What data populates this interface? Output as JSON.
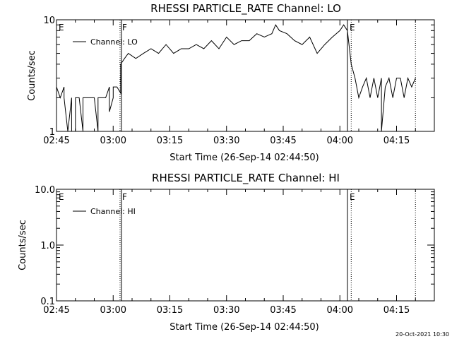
{
  "footer": {
    "timestamp": "20-Oct-2021 10:30"
  },
  "chart_data": [
    {
      "type": "line",
      "title": "RHESSI PARTICLE_RATE Channel: LO",
      "xlabel": "Start Time (26-Sep-14 02:44:50)",
      "ylabel": "Counts/sec",
      "yscale": "log",
      "ylim": [
        1,
        10
      ],
      "xlim_minutes_after_0245": [
        0,
        100
      ],
      "x_tick_labels": [
        "02:45",
        "03:00",
        "03:15",
        "03:30",
        "03:45",
        "04:00",
        "04:15"
      ],
      "y_tick_labels": [
        "1",
        "10"
      ],
      "legend": {
        "label": "Channel: LO",
        "placement": "top-left"
      },
      "markers": [
        {
          "label": "E",
          "time": "02:45",
          "style": "none"
        },
        {
          "label": "F",
          "time": "03:02",
          "style": "dotted"
        },
        {
          "label": "",
          "time": "03:02",
          "style": "solid"
        },
        {
          "label": "E",
          "time": "04:02",
          "style": "solid"
        },
        {
          "label": "",
          "time": "04:03",
          "style": "dotted"
        },
        {
          "label": "",
          "time": "04:20",
          "style": "dotted"
        }
      ],
      "series": [
        {
          "x": [
            "02:45",
            "02:46",
            "02:47",
            "02:47",
            "02:48",
            "02:49",
            "02:49",
            "02:50",
            "02:50",
            "02:51",
            "02:52",
            "02:52",
            "02:53",
            "02:55",
            "02:56",
            "02:56",
            "02:58",
            "02:59",
            "02:59",
            "03:00",
            "03:00",
            "03:01",
            "03:02",
            "03:02",
            "03:03",
            "03:04",
            "03:06",
            "03:08",
            "03:10",
            "03:12",
            "03:14",
            "03:16",
            "03:18",
            "03:20",
            "03:22",
            "03:24",
            "03:26",
            "03:28",
            "03:30",
            "03:32",
            "03:34",
            "03:36",
            "03:38",
            "03:40",
            "03:42",
            "03:43",
            "03:44",
            "03:46",
            "03:48",
            "03:50",
            "03:52",
            "03:54",
            "03:56",
            "03:58",
            "04:00",
            "04:01",
            "04:02",
            "04:03",
            "04:04",
            "04:05",
            "04:06",
            "04:07",
            "04:08",
            "04:09",
            "04:10",
            "04:11",
            "04:11",
            "04:12",
            "04:13",
            "04:14",
            "04:15",
            "04:16",
            "04:17",
            "04:18",
            "04:19",
            "04:20"
          ],
          "y": [
            2.5,
            2,
            2.5,
            2,
            1,
            2,
            1,
            1,
            2,
            2,
            1,
            2,
            2,
            2,
            1,
            2,
            2,
            2.5,
            1.5,
            2,
            2.5,
            2.5,
            2.2,
            4,
            4.5,
            5,
            4.5,
            5,
            5.5,
            5,
            6,
            5,
            5.5,
            5.5,
            6,
            5.5,
            6.5,
            5.5,
            7,
            6,
            6.5,
            6.5,
            7.5,
            7,
            7.5,
            9,
            8,
            7.5,
            6.5,
            6,
            7,
            5,
            6,
            7,
            8,
            9,
            8,
            4,
            3,
            2,
            2.5,
            3,
            2,
            3,
            2,
            3,
            1,
            2.5,
            3,
            2,
            3,
            3,
            2,
            3,
            2.5,
            3
          ]
        }
      ]
    },
    {
      "type": "line",
      "title": "RHESSI PARTICLE_RATE Channel: HI",
      "xlabel": "Start Time (26-Sep-14 02:44:50)",
      "ylabel": "Counts/sec",
      "yscale": "log",
      "ylim": [
        0.1,
        10
      ],
      "xlim_minutes_after_0245": [
        0,
        100
      ],
      "x_tick_labels": [
        "02:45",
        "03:00",
        "03:15",
        "03:30",
        "03:45",
        "04:00",
        "04:15"
      ],
      "y_tick_labels": [
        "0.1",
        "1.0",
        "10.0"
      ],
      "legend": {
        "label": "Channel: HI",
        "placement": "top-left"
      },
      "markers": [
        {
          "label": "E",
          "time": "02:45",
          "style": "none"
        },
        {
          "label": "F",
          "time": "03:02",
          "style": "dotted"
        },
        {
          "label": "",
          "time": "03:02",
          "style": "solid"
        },
        {
          "label": "E",
          "time": "04:02",
          "style": "solid"
        },
        {
          "label": "",
          "time": "04:03",
          "style": "dotted"
        },
        {
          "label": "",
          "time": "04:20",
          "style": "dotted"
        }
      ],
      "series": []
    }
  ]
}
